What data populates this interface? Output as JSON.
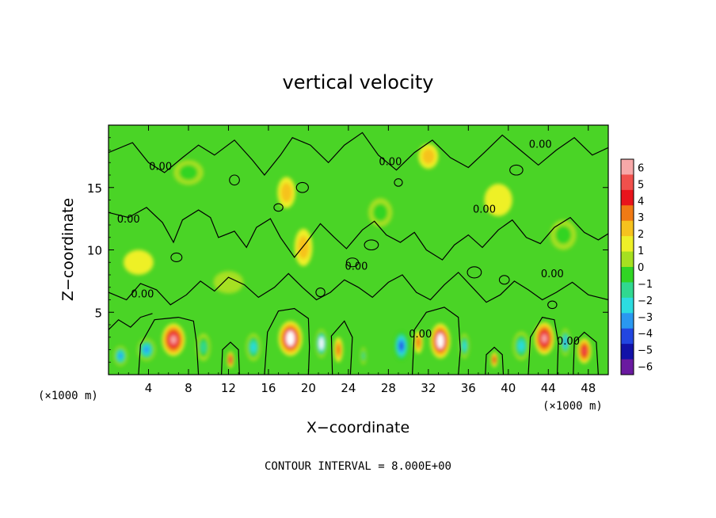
{
  "chart_data": {
    "type": "heatmap",
    "title": "vertical velocity",
    "xlabel": "X−coordinate",
    "ylabel": "Z−coordinate",
    "x_unit_left": "(×1000 m)",
    "x_unit_right": "(×1000 m)",
    "footer": "CONTOUR INTERVAL = 8.000E+00",
    "xlim": [
      0,
      50
    ],
    "ylim": [
      0,
      20
    ],
    "x_ticks": [
      4,
      8,
      12,
      16,
      20,
      24,
      28,
      32,
      36,
      40,
      44,
      48
    ],
    "x_tick_labels": [
      "4",
      "8",
      "12",
      "16",
      "20",
      "24",
      "28",
      "32",
      "36",
      "40",
      "44",
      "48"
    ],
    "y_ticks": [
      5,
      10,
      15
    ],
    "y_tick_labels": [
      "5",
      "10",
      "15"
    ],
    "contour_label": "0.00",
    "colorbar": {
      "levels": [
        6,
        5,
        4,
        3,
        2,
        1,
        0,
        -1,
        -2,
        -3,
        -4,
        -5,
        -6
      ],
      "labels": [
        "6",
        "5",
        "4",
        "3",
        "2",
        "1",
        "0",
        "−1",
        "−2",
        "−3",
        "−4",
        "−5",
        "−6"
      ],
      "colors": [
        "#f7a8a8",
        "#f0504c",
        "#e8141c",
        "#f07a14",
        "#f6c21e",
        "#eef028",
        "#a6e020",
        "#30d424",
        "#30d890",
        "#2cdce0",
        "#2a98f0",
        "#2246e0",
        "#1212a8",
        "#6a1aa0"
      ]
    },
    "features": [
      {
        "x": 6.5,
        "z": 2.8,
        "w": 2.3,
        "h": 2.6,
        "value": 5.5
      },
      {
        "x": 3.8,
        "z": 2.0,
        "w": 1.8,
        "h": 1.8,
        "value": -4.2
      },
      {
        "x": 1.2,
        "z": 1.5,
        "w": 1.4,
        "h": 1.6,
        "value": -4.5
      },
      {
        "x": 9.5,
        "z": 2.2,
        "w": 1.4,
        "h": 2.2,
        "value": -2.8
      },
      {
        "x": 12.2,
        "z": 1.2,
        "w": 0.7,
        "h": 1.3,
        "value": 4.2
      },
      {
        "x": 14.5,
        "z": 2.2,
        "w": 1.5,
        "h": 2.2,
        "value": -3.5
      },
      {
        "x": 18.2,
        "z": 2.9,
        "w": 2.4,
        "h": 2.8,
        "value": 6.0
      },
      {
        "x": 21.3,
        "z": 2.5,
        "w": 1.2,
        "h": 2.3,
        "value": -5.8
      },
      {
        "x": 23.0,
        "z": 2.0,
        "w": 0.9,
        "h": 2.0,
        "value": 3.0
      },
      {
        "x": 25.5,
        "z": 1.5,
        "w": 0.6,
        "h": 1.4,
        "value": -2.5
      },
      {
        "x": 29.3,
        "z": 2.3,
        "w": 1.4,
        "h": 2.3,
        "value": -5.0
      },
      {
        "x": 31.0,
        "z": 2.6,
        "w": 0.9,
        "h": 1.8,
        "value": 2.5
      },
      {
        "x": 33.2,
        "z": 2.7,
        "w": 2.0,
        "h": 2.8,
        "value": 6.0
      },
      {
        "x": 35.6,
        "z": 2.3,
        "w": 1.0,
        "h": 2.0,
        "value": -3.2
      },
      {
        "x": 38.6,
        "z": 1.2,
        "w": 0.7,
        "h": 1.2,
        "value": 4.0
      },
      {
        "x": 41.3,
        "z": 2.3,
        "w": 1.7,
        "h": 2.3,
        "value": -3.6
      },
      {
        "x": 43.6,
        "z": 2.9,
        "w": 2.0,
        "h": 2.6,
        "value": 5.2
      },
      {
        "x": 45.7,
        "z": 2.6,
        "w": 1.0,
        "h": 2.2,
        "value": -4.6
      },
      {
        "x": 47.6,
        "z": 1.9,
        "w": 1.4,
        "h": 2.0,
        "value": 4.8
      },
      {
        "x": 17.8,
        "z": 14.6,
        "w": 1.8,
        "h": 2.5,
        "value": 1.8
      },
      {
        "x": 19.5,
        "z": 10.2,
        "w": 1.8,
        "h": 3.0,
        "value": 1.3
      },
      {
        "x": 32.0,
        "z": 17.5,
        "w": 2.0,
        "h": 2.0,
        "value": 1.4
      },
      {
        "x": 8.0,
        "z": 16.2,
        "w": 3.0,
        "h": 2.0,
        "value": -1.3
      },
      {
        "x": 27.2,
        "z": 13.0,
        "w": 2.4,
        "h": 2.3,
        "value": -1.1
      },
      {
        "x": 45.5,
        "z": 11.2,
        "w": 2.6,
        "h": 2.4,
        "value": -1.2
      },
      {
        "x": 12.0,
        "z": 7.4,
        "w": 3.0,
        "h": 1.8,
        "value": -0.9
      },
      {
        "x": 39.0,
        "z": 14.0,
        "w": 2.8,
        "h": 2.6,
        "value": 0.9
      },
      {
        "x": 3.0,
        "z": 9.0,
        "w": 3.0,
        "h": 2.0,
        "value": 0.8
      }
    ],
    "contours": [
      [
        [
          3.0,
          0.0
        ],
        [
          3.2,
          2.4
        ],
        [
          4.6,
          4.4
        ],
        [
          5.8,
          4.5
        ],
        [
          7.0,
          4.6
        ],
        [
          8.5,
          4.3
        ],
        [
          8.8,
          2.6
        ],
        [
          9.0,
          0.0
        ]
      ],
      [
        [
          11.3,
          0.0
        ],
        [
          11.4,
          2.0
        ],
        [
          12.2,
          2.6
        ],
        [
          13.0,
          2.0
        ],
        [
          13.1,
          0.0
        ]
      ],
      [
        [
          15.6,
          0.0
        ],
        [
          15.9,
          3.4
        ],
        [
          17.0,
          5.1
        ],
        [
          18.6,
          5.3
        ],
        [
          20.0,
          4.5
        ],
        [
          20.1,
          2.2
        ],
        [
          20.0,
          0.0
        ]
      ],
      [
        [
          22.4,
          0.0
        ],
        [
          22.3,
          3.1
        ],
        [
          23.6,
          4.3
        ],
        [
          24.4,
          3.0
        ],
        [
          24.2,
          0.0
        ]
      ],
      [
        [
          30.4,
          0.0
        ],
        [
          30.6,
          3.6
        ],
        [
          31.8,
          5.0
        ],
        [
          33.6,
          5.4
        ],
        [
          35.0,
          4.6
        ],
        [
          35.2,
          2.0
        ],
        [
          35.0,
          0.0
        ]
      ],
      [
        [
          37.7,
          0.0
        ],
        [
          37.8,
          1.6
        ],
        [
          38.6,
          2.2
        ],
        [
          39.4,
          1.6
        ],
        [
          39.5,
          0.0
        ]
      ],
      [
        [
          42.0,
          0.0
        ],
        [
          42.2,
          3.0
        ],
        [
          43.4,
          4.6
        ],
        [
          44.6,
          4.4
        ],
        [
          45.0,
          2.6
        ],
        [
          44.9,
          0.0
        ]
      ],
      [
        [
          46.5,
          0.0
        ],
        [
          46.6,
          2.6
        ],
        [
          47.6,
          3.4
        ],
        [
          48.8,
          2.6
        ],
        [
          49.0,
          0.0
        ]
      ],
      [
        [
          0.0,
          13.0
        ],
        [
          2.0,
          12.6
        ],
        [
          3.8,
          13.4
        ],
        [
          5.4,
          12.2
        ],
        [
          6.5,
          10.6
        ],
        [
          7.4,
          12.4
        ],
        [
          9.0,
          13.2
        ],
        [
          10.2,
          12.6
        ],
        [
          11.0,
          11.0
        ],
        [
          12.6,
          11.5
        ],
        [
          13.8,
          10.2
        ],
        [
          14.8,
          11.8
        ],
        [
          16.2,
          12.5
        ],
        [
          17.2,
          11.0
        ],
        [
          18.6,
          9.4
        ],
        [
          19.8,
          10.6
        ],
        [
          21.2,
          12.1
        ],
        [
          22.6,
          11.0
        ],
        [
          23.8,
          10.1
        ],
        [
          25.4,
          11.6
        ],
        [
          26.6,
          12.3
        ],
        [
          27.8,
          11.2
        ],
        [
          29.2,
          10.6
        ],
        [
          30.6,
          11.4
        ],
        [
          31.8,
          10.0
        ],
        [
          33.4,
          9.2
        ],
        [
          34.6,
          10.4
        ],
        [
          36.0,
          11.2
        ],
        [
          37.4,
          10.2
        ],
        [
          39.0,
          11.6
        ],
        [
          40.4,
          12.4
        ],
        [
          41.8,
          11.0
        ],
        [
          43.2,
          10.5
        ],
        [
          44.6,
          11.8
        ],
        [
          46.2,
          12.6
        ],
        [
          47.6,
          11.4
        ],
        [
          49.0,
          10.8
        ],
        [
          50.0,
          11.3
        ]
      ],
      [
        [
          0.0,
          6.6
        ],
        [
          1.8,
          6.0
        ],
        [
          3.2,
          7.3
        ],
        [
          4.8,
          6.8
        ],
        [
          6.2,
          5.6
        ],
        [
          7.8,
          6.4
        ],
        [
          9.2,
          7.5
        ],
        [
          10.6,
          6.7
        ],
        [
          12.0,
          7.8
        ],
        [
          13.6,
          7.2
        ],
        [
          15.0,
          6.2
        ],
        [
          16.6,
          7.0
        ],
        [
          18.0,
          8.1
        ],
        [
          19.4,
          7.0
        ],
        [
          20.8,
          6.0
        ],
        [
          22.2,
          6.6
        ],
        [
          23.6,
          7.6
        ],
        [
          25.0,
          7.0
        ],
        [
          26.4,
          6.2
        ],
        [
          28.0,
          7.4
        ],
        [
          29.4,
          8.0
        ],
        [
          30.8,
          6.6
        ],
        [
          32.2,
          6.0
        ],
        [
          33.6,
          7.2
        ],
        [
          35.0,
          8.2
        ],
        [
          36.4,
          7.0
        ],
        [
          37.8,
          5.8
        ],
        [
          39.2,
          6.4
        ],
        [
          40.6,
          7.5
        ],
        [
          42.0,
          6.8
        ],
        [
          43.4,
          6.0
        ],
        [
          44.8,
          6.6
        ],
        [
          46.4,
          7.4
        ],
        [
          48.0,
          6.4
        ],
        [
          50.0,
          6.0
        ]
      ],
      [
        [
          0.0,
          17.8
        ],
        [
          2.4,
          18.6
        ],
        [
          4.0,
          17.0
        ],
        [
          5.6,
          16.2
        ],
        [
          7.4,
          17.4
        ],
        [
          9.0,
          18.4
        ],
        [
          10.6,
          17.6
        ],
        [
          12.6,
          18.8
        ],
        [
          14.4,
          17.2
        ],
        [
          15.6,
          16.0
        ],
        [
          17.2,
          17.6
        ],
        [
          18.4,
          19.0
        ],
        [
          20.2,
          18.4
        ],
        [
          22.0,
          17.0
        ],
        [
          23.6,
          18.4
        ],
        [
          25.4,
          19.4
        ],
        [
          27.0,
          17.6
        ],
        [
          28.8,
          16.4
        ],
        [
          30.6,
          17.8
        ],
        [
          32.4,
          18.8
        ],
        [
          34.2,
          17.4
        ],
        [
          36.0,
          16.6
        ],
        [
          37.6,
          17.8
        ],
        [
          39.4,
          19.2
        ],
        [
          41.2,
          18.0
        ],
        [
          43.0,
          16.8
        ],
        [
          44.8,
          18.0
        ],
        [
          46.6,
          19.0
        ],
        [
          48.4,
          17.6
        ],
        [
          50.0,
          18.2
        ]
      ],
      [
        [
          0.0,
          3.6
        ],
        [
          1.0,
          4.4
        ],
        [
          2.2,
          3.8
        ],
        [
          3.2,
          4.6
        ],
        [
          4.4,
          4.9
        ]
      ]
    ],
    "contour_loops": [
      {
        "x": 19.4,
        "z": 15.0,
        "w": 1.2,
        "h": 0.8
      },
      {
        "x": 17.0,
        "z": 13.4,
        "w": 0.9,
        "h": 0.6
      },
      {
        "x": 26.3,
        "z": 10.4,
        "w": 1.4,
        "h": 0.8
      },
      {
        "x": 24.4,
        "z": 9.0,
        "w": 1.2,
        "h": 0.7
      },
      {
        "x": 36.6,
        "z": 8.2,
        "w": 1.4,
        "h": 0.9
      },
      {
        "x": 39.6,
        "z": 7.6,
        "w": 1.0,
        "h": 0.7
      },
      {
        "x": 12.6,
        "z": 15.6,
        "w": 1.0,
        "h": 0.8
      },
      {
        "x": 40.8,
        "z": 16.4,
        "w": 1.3,
        "h": 0.8
      },
      {
        "x": 21.2,
        "z": 6.6,
        "w": 0.9,
        "h": 0.7
      },
      {
        "x": 6.8,
        "z": 9.4,
        "w": 1.1,
        "h": 0.7
      },
      {
        "x": 44.4,
        "z": 5.6,
        "w": 0.9,
        "h": 0.6
      },
      {
        "x": 29.0,
        "z": 15.4,
        "w": 0.8,
        "h": 0.6
      }
    ],
    "contour_labels": [
      {
        "x": 2.0,
        "z": 12.2
      },
      {
        "x": 5.2,
        "z": 16.4
      },
      {
        "x": 3.4,
        "z": 6.2
      },
      {
        "x": 28.2,
        "z": 16.8
      },
      {
        "x": 37.6,
        "z": 13.0
      },
      {
        "x": 43.2,
        "z": 18.2
      },
      {
        "x": 24.8,
        "z": 8.4
      },
      {
        "x": 44.4,
        "z": 7.8
      },
      {
        "x": 31.2,
        "z": 3.0
      },
      {
        "x": 46.0,
        "z": 2.4
      }
    ]
  }
}
